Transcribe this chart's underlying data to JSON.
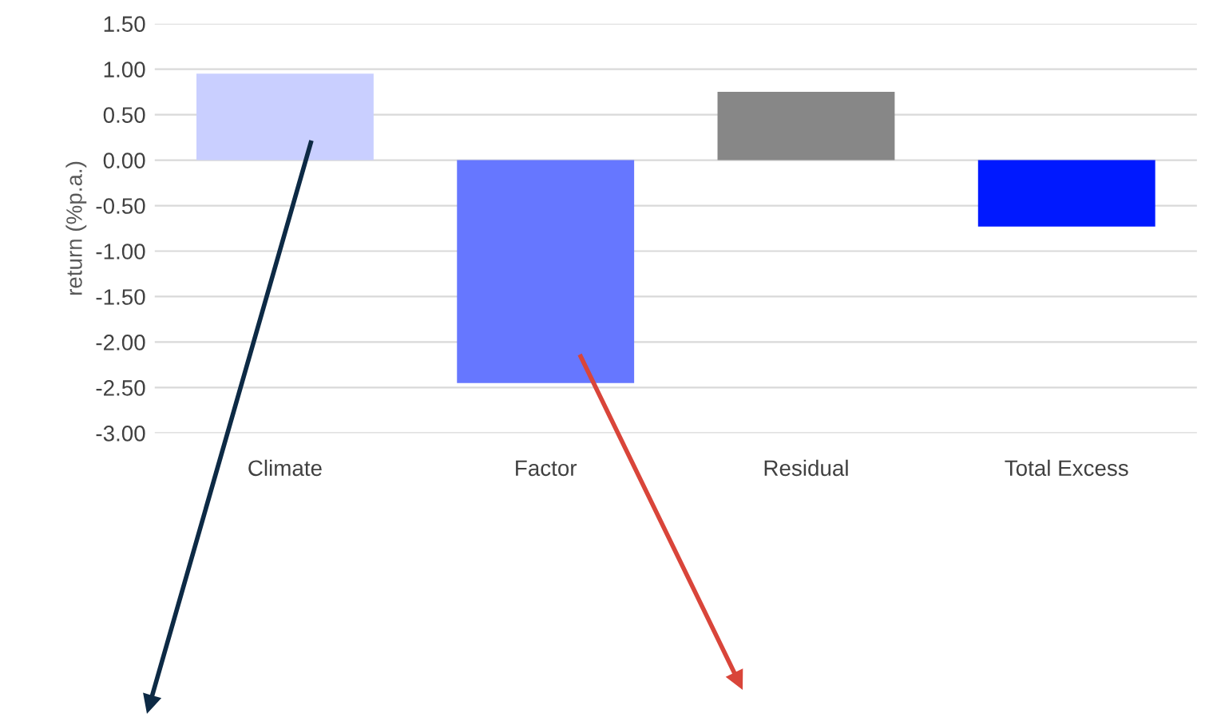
{
  "chart_data": {
    "type": "bar",
    "ylabel": "return (%p.a.)",
    "categories": [
      "Climate",
      "Factor",
      "Residual",
      "Total Excess"
    ],
    "values": [
      0.95,
      -2.45,
      0.75,
      -0.73
    ],
    "colors": [
      "#c9cfff",
      "#6677ff",
      "#878787",
      "#0019ff"
    ],
    "ylim": [
      -3.0,
      1.5
    ],
    "yticks": [
      {
        "value": 1.5,
        "label": "1.50"
      },
      {
        "value": 1.0,
        "label": "1.00"
      },
      {
        "value": 0.5,
        "label": "0.50"
      },
      {
        "value": 0.0,
        "label": "0.00"
      },
      {
        "value": -0.5,
        "label": "-0.50"
      },
      {
        "value": -1.0,
        "label": "-1.00"
      },
      {
        "value": -1.5,
        "label": "-1.50"
      },
      {
        "value": -2.0,
        "label": "-2.00"
      },
      {
        "value": -2.5,
        "label": "-2.50"
      },
      {
        "value": -3.0,
        "label": "-3.00"
      }
    ],
    "grid": "y",
    "legend": false
  }
}
